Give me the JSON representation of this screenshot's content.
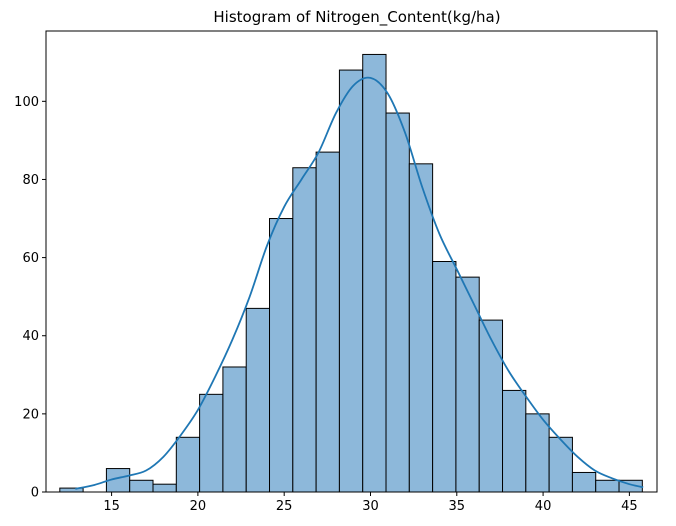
{
  "chart_data": {
    "type": "bar",
    "title": "Histogram of Nitrogen_Content(kg/ha)",
    "xlabel": "",
    "ylabel": "",
    "xlim": [
      11.2,
      46.6
    ],
    "ylim": [
      0,
      118
    ],
    "x_ticks": [
      15,
      20,
      25,
      30,
      35,
      40,
      45
    ],
    "y_ticks": [
      0,
      20,
      40,
      60,
      80,
      100
    ],
    "bins": {
      "start": 12.0,
      "width": 1.35,
      "counts": [
        1,
        0,
        6,
        3,
        2,
        14,
        25,
        32,
        47,
        70,
        83,
        87,
        108,
        112,
        97,
        84,
        59,
        55,
        44,
        26,
        20,
        14,
        5,
        3,
        3
      ]
    },
    "kde": {
      "x": [
        12.9,
        14,
        15,
        16,
        17,
        18,
        19,
        20,
        21,
        22,
        23,
        24,
        25,
        26,
        27,
        28,
        29,
        30,
        31,
        32,
        33,
        34,
        35,
        36,
        37,
        38,
        39,
        40,
        41,
        42,
        43,
        44,
        45,
        45.8
      ],
      "y": [
        0.8,
        1.8,
        3.2,
        4.2,
        5.5,
        9,
        14.5,
        21,
        29.5,
        39,
        50,
        63,
        73,
        80,
        87,
        97,
        104,
        106,
        102,
        92,
        78,
        66,
        57,
        48,
        39,
        31,
        24.5,
        18.5,
        13.5,
        9,
        5.5,
        3.5,
        2,
        1.2
      ]
    },
    "colors": {
      "bar_fill": "#8db8da",
      "bar_edge": "#000000",
      "kde_line": "#1f77b4"
    },
    "grid": false,
    "legend": "none"
  }
}
